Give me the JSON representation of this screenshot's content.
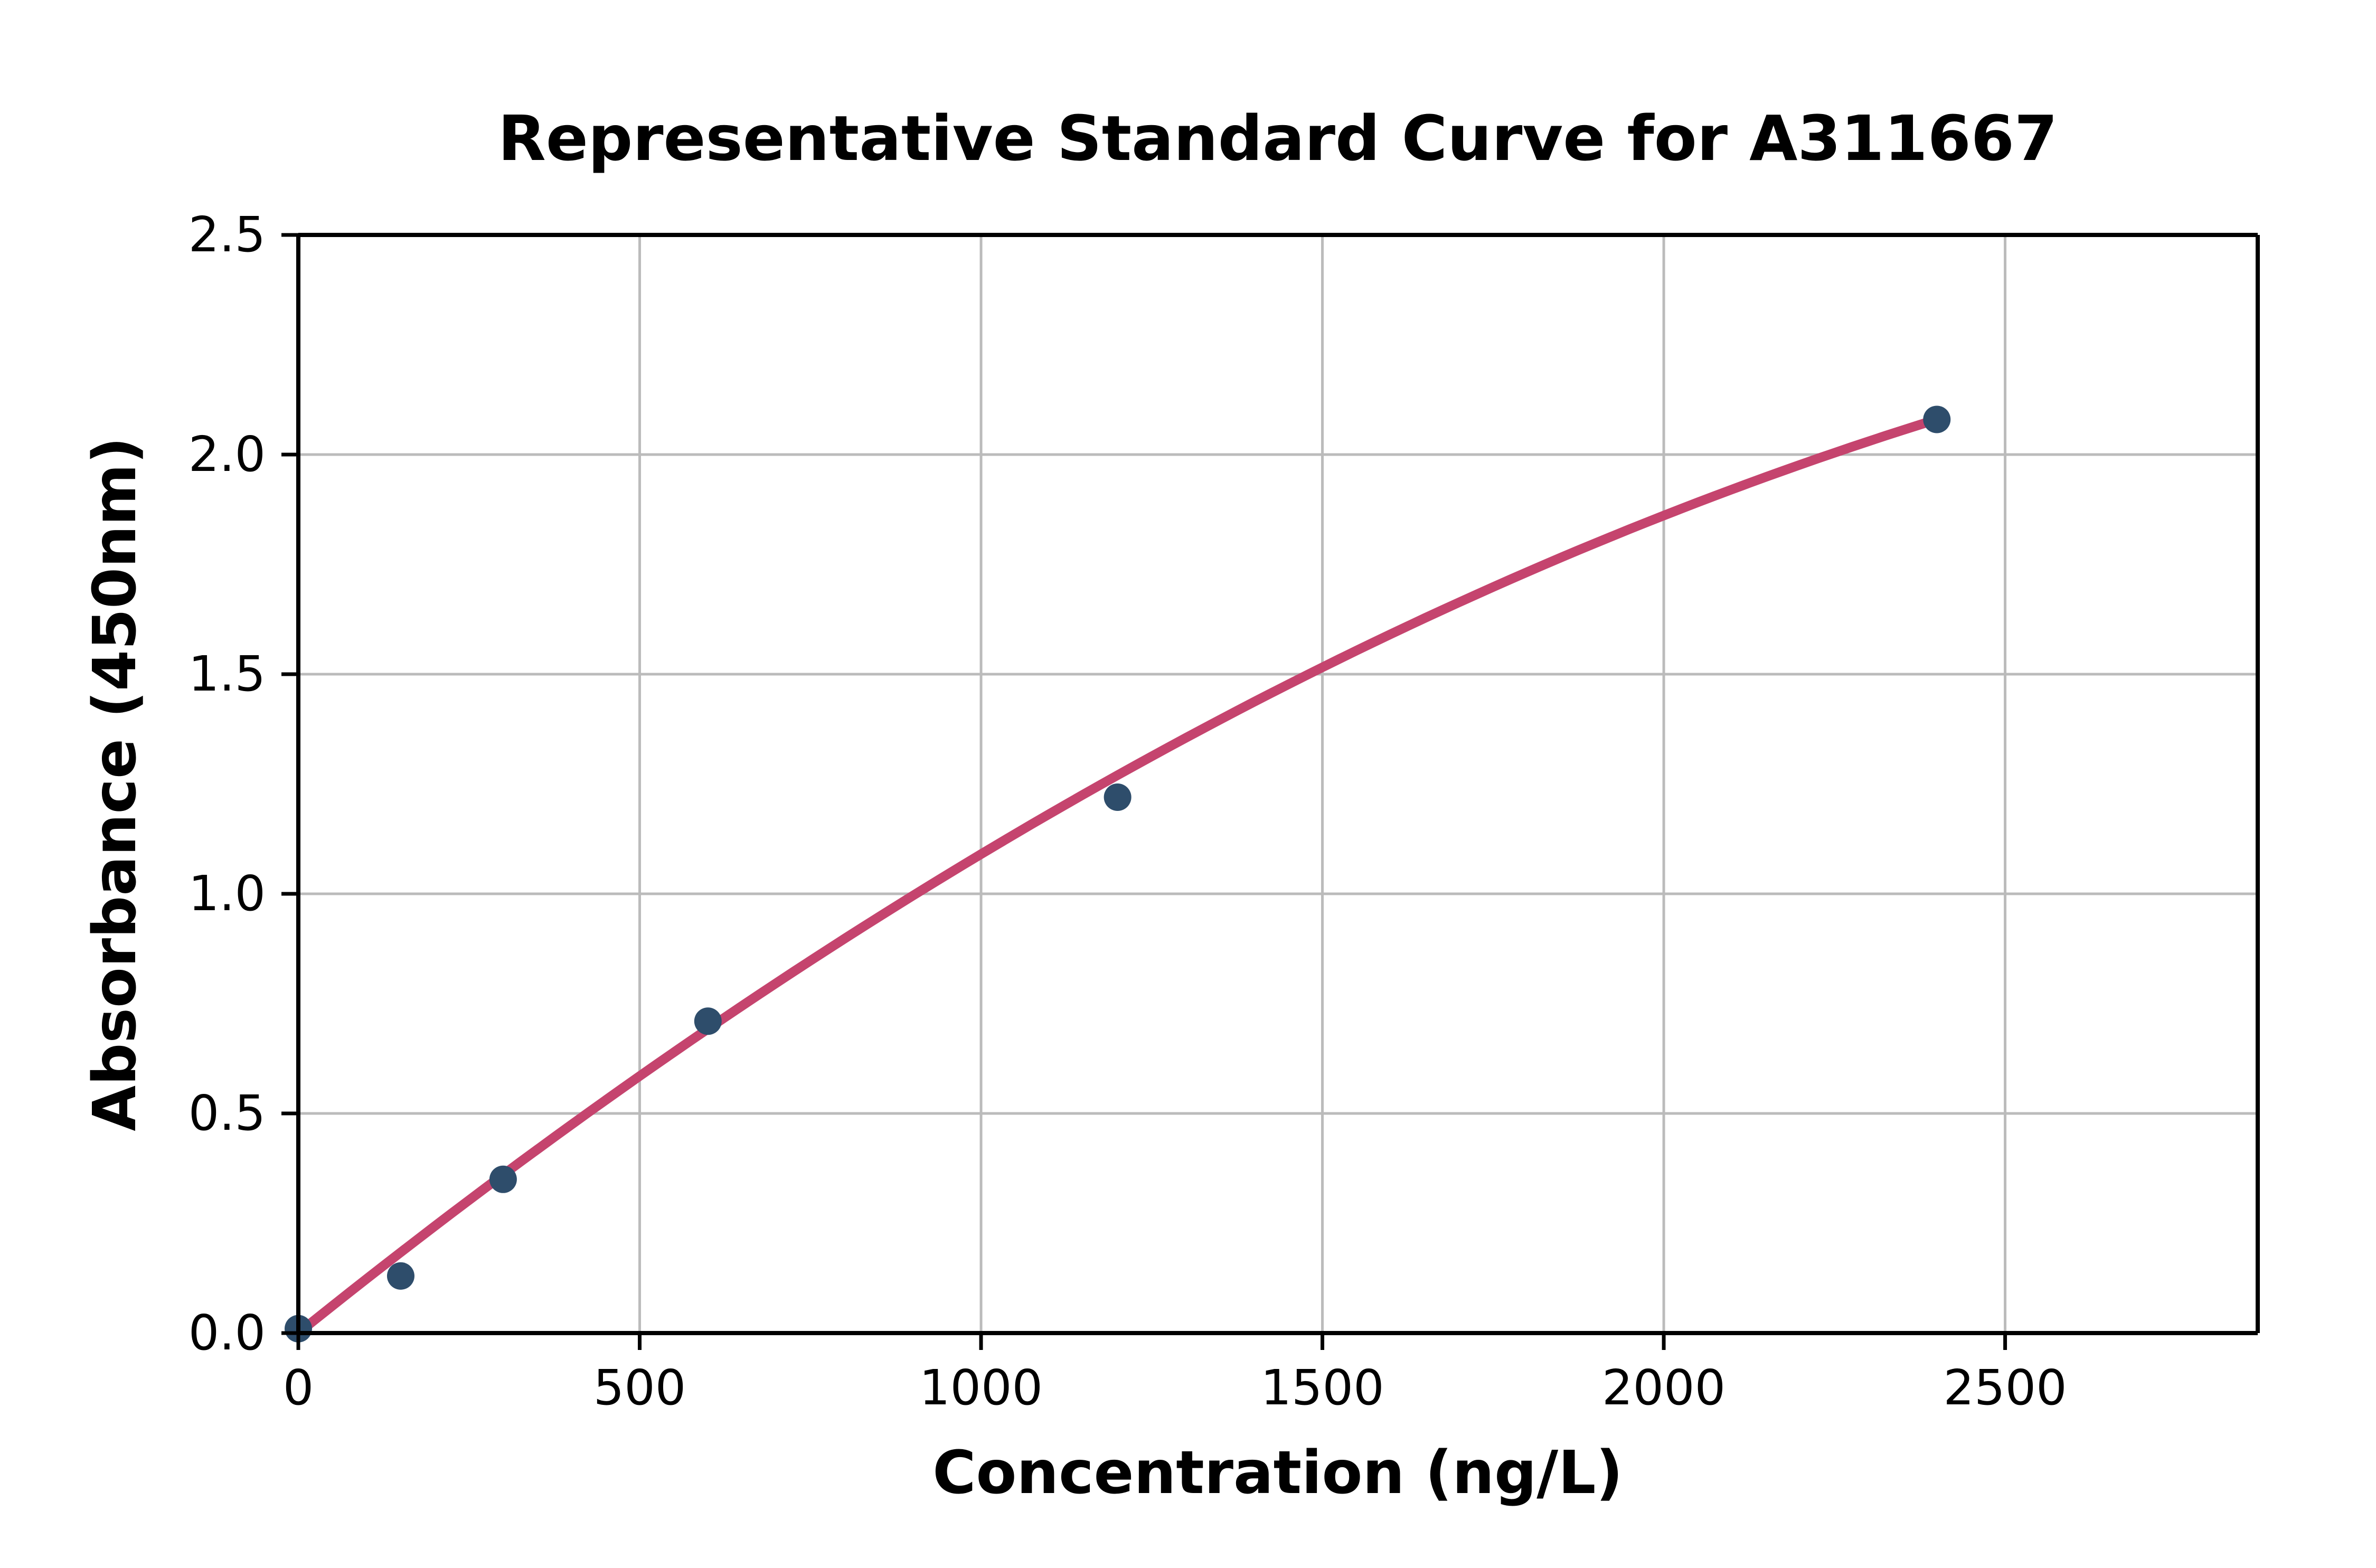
{
  "chart_data": {
    "type": "scatter",
    "title": "Representative Standard Curve for A311667",
    "xlabel": "Concentration (ng/L)",
    "ylabel": "Absorbance (450nm)",
    "xlim": [
      0,
      2870
    ],
    "ylim": [
      0,
      2.5
    ],
    "grid": true,
    "legend": "none",
    "x_ticks": [
      0,
      500,
      1000,
      1500,
      2000,
      2500
    ],
    "x_tick_labels": [
      "0",
      "500",
      "1000",
      "1500",
      "2000",
      "2500"
    ],
    "y_ticks": [
      0.0,
      0.5,
      1.0,
      1.5,
      2.0,
      2.5
    ],
    "y_tick_labels": [
      "0.0",
      "0.5",
      "1.0",
      "1.5",
      "2.0",
      "2.5"
    ],
    "series": [
      {
        "name": "standard-points",
        "style": "scatter",
        "points": [
          {
            "x": 0,
            "y": 0.01
          },
          {
            "x": 150,
            "y": 0.13
          },
          {
            "x": 300,
            "y": 0.35
          },
          {
            "x": 600,
            "y": 0.71
          },
          {
            "x": 1200,
            "y": 1.22
          },
          {
            "x": 2400,
            "y": 2.08
          }
        ]
      }
    ],
    "fit_line": {
      "name": "fitted-standard-curve",
      "model": "y = a*x + b*x^2",
      "a": 0.00125,
      "b": -1.597e-07,
      "x_range": [
        0,
        2400
      ]
    },
    "colors": {
      "marker": "#2E4D6B",
      "line": "#C5446E",
      "grid": "#BBBBBB",
      "axis": "#000000",
      "background": "#FFFFFF"
    }
  }
}
